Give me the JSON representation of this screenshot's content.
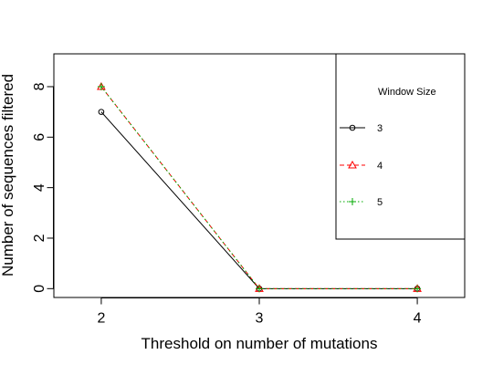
{
  "chart_data": {
    "type": "line",
    "title": "",
    "xlabel": "Threshold on number of mutations",
    "ylabel": "Number of sequences filtered",
    "x": [
      2,
      3,
      4
    ],
    "x_ticks": [
      "2",
      "3",
      "4"
    ],
    "y_ticks": [
      "0",
      "2",
      "4",
      "6",
      "8"
    ],
    "xlim": [
      1.7,
      4.3
    ],
    "ylim": [
      -0.35,
      9.3
    ],
    "grid": false,
    "legend_title": "Window Size",
    "legend_position": "top-right",
    "series": [
      {
        "name": "3",
        "values": [
          7,
          0,
          0
        ],
        "color": "#000000",
        "line": "solid",
        "marker": "circle"
      },
      {
        "name": "4",
        "values": [
          8,
          0,
          0
        ],
        "color": "#ff0000",
        "line": "dashed",
        "marker": "triangle"
      },
      {
        "name": "5",
        "values": [
          8,
          0,
          0
        ],
        "color": "#00aa00",
        "line": "dotted",
        "marker": "plus"
      }
    ]
  }
}
